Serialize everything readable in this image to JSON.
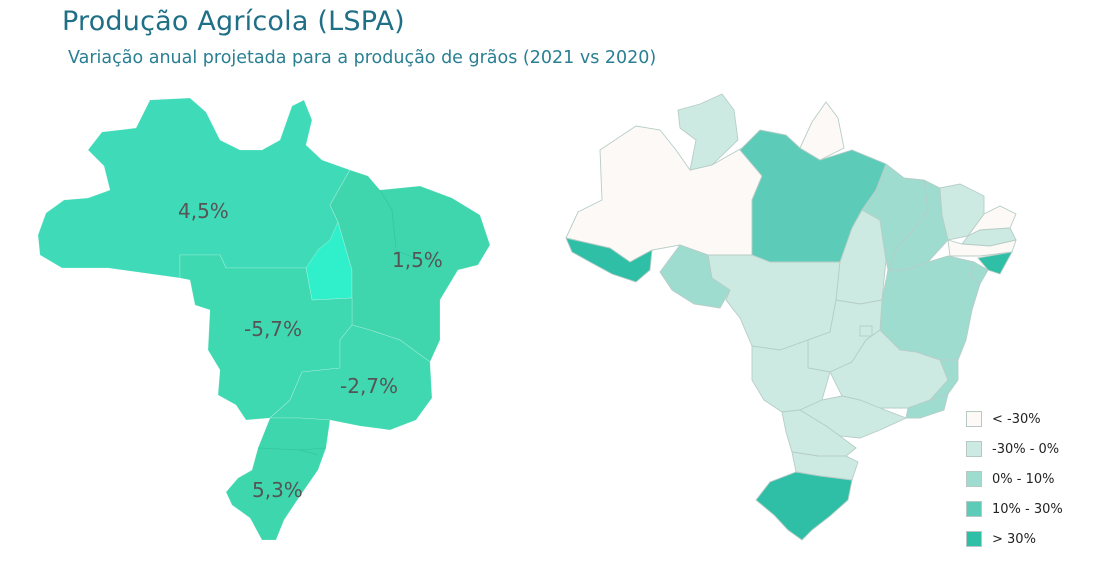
{
  "header": {
    "title": "Produção Agrícola (LSPA)",
    "subtitle": "Variação anual projetada para a produção de grãos (2021 vs 2020)"
  },
  "left_map": {
    "regions": {
      "norte": {
        "label": "4,5%",
        "value": 4.5
      },
      "nordeste": {
        "label": "1,5%",
        "value": 1.5
      },
      "centro_oeste": {
        "label": "-5,7%",
        "value": -5.7
      },
      "sudeste": {
        "label": "-2,7%",
        "value": -2.7
      },
      "sul": {
        "label": "5,3%",
        "value": 5.3
      }
    }
  },
  "legend": {
    "items": [
      {
        "label": "< -30%",
        "color": "#fdf9f6"
      },
      {
        "label": "-30% - 0%",
        "color": "#cdeae2"
      },
      {
        "label": "0% - 10%",
        "color": "#9edcd0"
      },
      {
        "label": "10% - 30%",
        "color": "#5cccb8"
      },
      {
        "label": "> 30%",
        "color": "#2fbfa6"
      }
    ]
  }
}
